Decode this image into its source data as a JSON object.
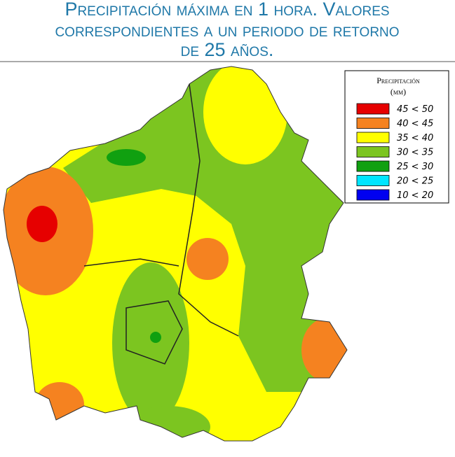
{
  "title_lines": [
    "Precipitación máxima en 1 hora. Valores",
    "correspondientes a un periodo de retorno",
    "de 25 años."
  ],
  "legend": {
    "title": "Precipitación",
    "unit": "(mm)",
    "entries": [
      {
        "label": "45 < 50",
        "color": "#e60000"
      },
      {
        "label": "40 < 45",
        "color": "#f58220"
      },
      {
        "label": "35 < 40",
        "color": "#ffff00"
      },
      {
        "label": "30 < 35",
        "color": "#7cc520"
      },
      {
        "label": "25 < 30",
        "color": "#10a010"
      },
      {
        "label": "20 < 25",
        "color": "#00e5ff"
      },
      {
        "label": "10 < 20",
        "color": "#0000f0"
      }
    ]
  }
}
